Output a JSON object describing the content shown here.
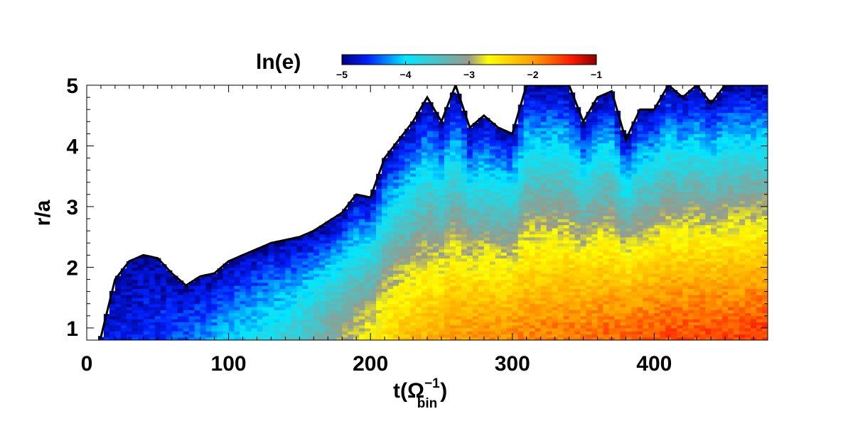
{
  "chart_data": {
    "type": "heatmap",
    "title": "",
    "xlabel": "t(Ω",
    "xlabel_sup": "−1",
    "xlabel_sub": "bin",
    "xlabel_close": ")",
    "ylabel": "r/a",
    "xlim": [
      0,
      480
    ],
    "ylim": [
      0.8,
      5.0
    ],
    "x_ticks": [
      0,
      100,
      200,
      300,
      400
    ],
    "x_tick_labels": [
      "0",
      "100",
      "200",
      "300",
      "400"
    ],
    "y_ticks": [
      1,
      2,
      3,
      4,
      5
    ],
    "y_tick_labels": [
      "1",
      "2",
      "3",
      "4",
      "5"
    ],
    "colorbar": {
      "title": "ln(e)",
      "range": [
        -5,
        -1
      ],
      "ticks": [
        -5,
        -4,
        -3,
        -2,
        -1
      ],
      "tick_labels": [
        "−5",
        "−4",
        "−3",
        "−2",
        "−1"
      ],
      "stops": [
        {
          "value": -5.0,
          "color": "#00007a"
        },
        {
          "value": -4.6,
          "color": "#0020ff"
        },
        {
          "value": -4.0,
          "color": "#00e8ff"
        },
        {
          "value": -3.0,
          "color": "#9a9a8a"
        },
        {
          "value": -2.7,
          "color": "#ffff00"
        },
        {
          "value": -2.0,
          "color": "#ffa000"
        },
        {
          "value": -1.4,
          "color": "#ff1a00"
        },
        {
          "value": -1.0,
          "color": "#8a0000"
        }
      ]
    },
    "front_boundary": {
      "description": "outer radius of the nonzero-eccentricity region versus time",
      "t": [
        10,
        20,
        30,
        40,
        50,
        60,
        70,
        80,
        90,
        100,
        110,
        120,
        130,
        140,
        150,
        160,
        170,
        180,
        190,
        200,
        210,
        220,
        230,
        240,
        250,
        260,
        270,
        280,
        290,
        300,
        310,
        320,
        330,
        340,
        350,
        360,
        370,
        380,
        390,
        400,
        410,
        420,
        430,
        440,
        450,
        460,
        470,
        480
      ],
      "r_a": [
        0.85,
        1.8,
        2.1,
        2.2,
        2.15,
        1.9,
        1.7,
        1.85,
        1.9,
        2.1,
        2.2,
        2.3,
        2.4,
        2.45,
        2.5,
        2.6,
        2.75,
        2.9,
        3.2,
        3.15,
        3.8,
        4.1,
        4.4,
        4.8,
        4.4,
        5.0,
        4.3,
        4.5,
        4.3,
        4.2,
        5.0,
        5.0,
        5.0,
        5.0,
        4.4,
        4.8,
        4.9,
        4.1,
        4.6,
        4.6,
        5.0,
        4.8,
        5.0,
        4.7,
        5.0,
        5.0,
        5.0,
        5.0
      ]
    },
    "color_trend": {
      "description": "approximate ln(e) at inner radius and slope toward the front",
      "t": [
        20,
        60,
        100,
        140,
        180,
        220,
        260,
        300,
        340,
        380,
        420,
        460,
        480
      ],
      "ln_e_inner": [
        -4.7,
        -4.5,
        -4.1,
        -3.7,
        -3.0,
        -2.3,
        -2.0,
        -1.9,
        -1.8,
        -1.7,
        -1.6,
        -1.6,
        -1.5
      ]
    }
  }
}
